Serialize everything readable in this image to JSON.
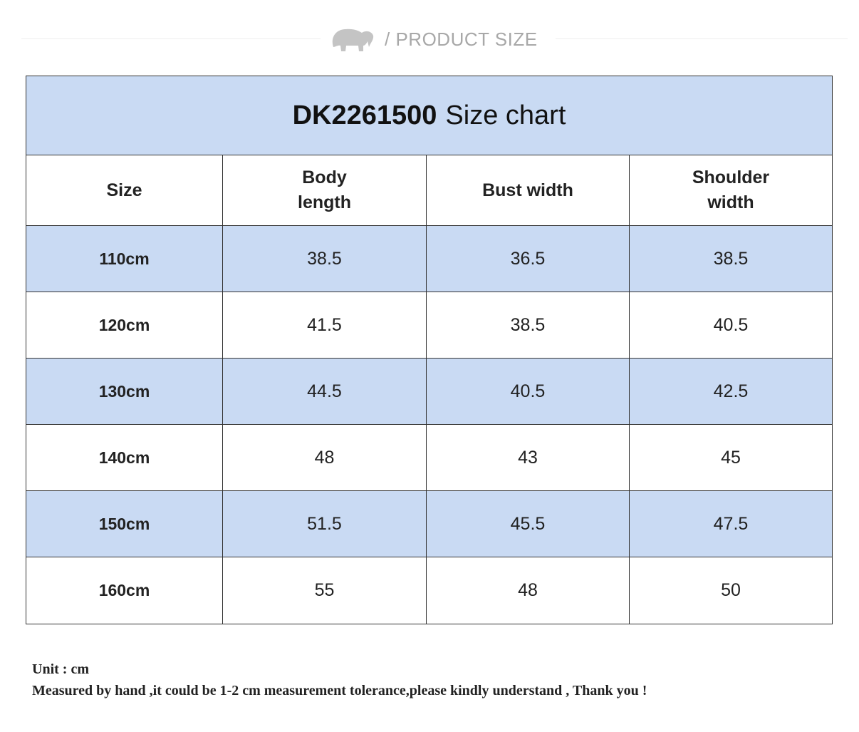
{
  "header": {
    "label": "/ PRODUCT SIZE"
  },
  "table": {
    "title_code": "DK2261500",
    "title_text": "Size chart",
    "columns": [
      "Size",
      "Body length",
      "Bust width",
      "Shoulder width"
    ],
    "rows": [
      [
        "110cm",
        38.5,
        36.5,
        38.5
      ],
      [
        "120cm",
        41.5,
        38.5,
        40.5
      ],
      [
        "130cm",
        44.5,
        40.5,
        42.5
      ],
      [
        "140cm",
        48,
        43,
        45
      ],
      [
        "150cm",
        51.5,
        45.5,
        47.5
      ],
      [
        "160cm",
        55,
        48,
        50
      ]
    ]
  },
  "notes": [
    "Unit : cm",
    "Measured by hand ,it could be 1-2 cm measurement tolerance,please kindly understand , Thank you !"
  ]
}
